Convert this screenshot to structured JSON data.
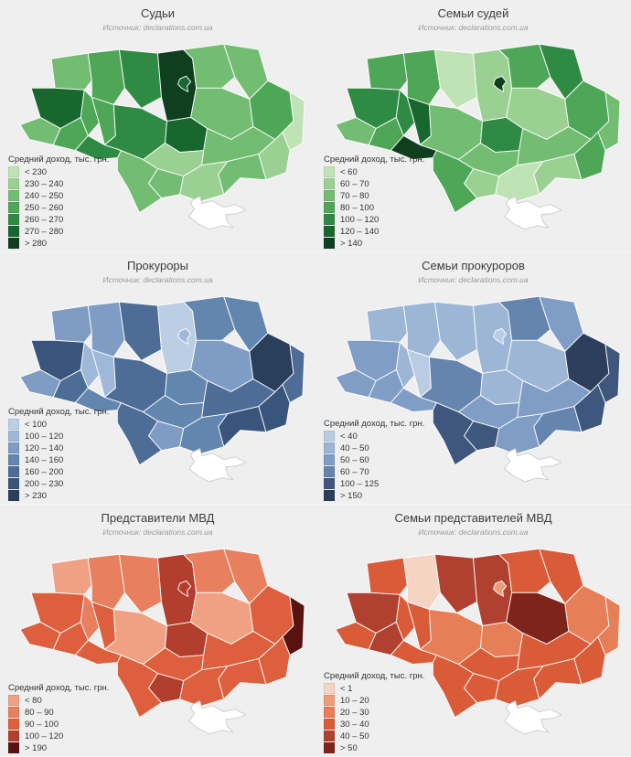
{
  "page": {
    "background": "#efefef"
  },
  "source_note": "Источник: declarations.com.ua",
  "legend_title": "Средний доход, тыс. грн.",
  "chart_data": [
    {
      "type": "heatmap",
      "subtype": "choropleth-map-ukraine",
      "title": "Судьи",
      "subtitle": "Источник: declarations.com.ua",
      "legend_title": "Средний доход, тыс. грн.",
      "legend_position": "bottom-left",
      "classes": [
        "< 230",
        "230 – 240",
        "240 – 250",
        "250 – 260",
        "260 – 270",
        "270 – 280",
        "> 280"
      ],
      "palette": [
        "#bfe3b4",
        "#9ad192",
        "#72bd72",
        "#4da757",
        "#2f8b44",
        "#17672f",
        "#103f20"
      ],
      "no_data_color": "#ffffff",
      "region_class": {
        "volyn": 2,
        "rivne": 3,
        "zhytomyr": 4,
        "kyiv_obl": 6,
        "kyiv_city": 5,
        "chernihiv": 2,
        "sumy": 2,
        "lviv": 5,
        "ternopil": 3,
        "khmelnytskyi": 3,
        "vinnytsia": 4,
        "cherkasy": 5,
        "poltava": 2,
        "kharkiv": 3,
        "luhansk": 0,
        "donetsk": 1,
        "zaporizhzhia": 2,
        "dnipropetrovsk": 2,
        "kirovohrad": 1,
        "mykolaiv": 2,
        "kherson": 1,
        "odesa": 2,
        "zakarpattia": 2,
        "ivano_frankivsk": 3,
        "chernivtsi": 4,
        "crimea": -1
      }
    },
    {
      "type": "heatmap",
      "subtype": "choropleth-map-ukraine",
      "title": "Семьи судей",
      "subtitle": "Источник: declarations.com.ua",
      "legend_title": "Средний доход, тыс. грн.",
      "legend_position": "bottom-left",
      "classes": [
        "< 60",
        "60 – 70",
        "70 – 80",
        "80 – 100",
        "100 – 120",
        "120 – 140",
        "> 140"
      ],
      "palette": [
        "#bfe3b4",
        "#9ad192",
        "#72bd72",
        "#4da757",
        "#2f8b44",
        "#17672f",
        "#103f20"
      ],
      "no_data_color": "#ffffff",
      "region_class": {
        "volyn": 3,
        "rivne": 3,
        "zhytomyr": 0,
        "kyiv_obl": 1,
        "kyiv_city": 6,
        "chernihiv": 3,
        "sumy": 4,
        "lviv": 4,
        "ternopil": 4,
        "khmelnytskyi": 5,
        "vinnytsia": 2,
        "cherkasy": 4,
        "poltava": 1,
        "kharkiv": 3,
        "luhansk": 2,
        "donetsk": 3,
        "zaporizhzhia": 1,
        "dnipropetrovsk": 2,
        "kirovohrad": 2,
        "mykolaiv": 1,
        "kherson": 0,
        "odesa": 3,
        "zakarpattia": 2,
        "ivano_frankivsk": 3,
        "chernivtsi": 6,
        "crimea": -1
      }
    },
    {
      "type": "heatmap",
      "subtype": "choropleth-map-ukraine",
      "title": "Прокуроры",
      "subtitle": "Источник: declarations.com.ua",
      "legend_title": "Средний доход, тыс. грн.",
      "legend_position": "bottom-left",
      "classes": [
        "< 100",
        "100 – 120",
        "120 – 140",
        "140 – 160",
        "160 – 200",
        "200 – 230",
        "> 230"
      ],
      "palette": [
        "#bccee4",
        "#9fb8d8",
        "#7e9cc4",
        "#6386af",
        "#4d6d96",
        "#3a557b",
        "#2a3f5c"
      ],
      "no_data_color": "#ffffff",
      "region_class": {
        "volyn": 2,
        "rivne": 2,
        "zhytomyr": 4,
        "kyiv_obl": 0,
        "kyiv_city": 1,
        "chernihiv": 3,
        "sumy": 3,
        "lviv": 5,
        "ternopil": 1,
        "khmelnytskyi": 1,
        "vinnytsia": 4,
        "cherkasy": 3,
        "poltava": 2,
        "kharkiv": 6,
        "luhansk": 4,
        "donetsk": 5,
        "zaporizhzhia": 5,
        "dnipropetrovsk": 4,
        "kirovohrad": 3,
        "mykolaiv": 2,
        "kherson": 3,
        "odesa": 4,
        "zakarpattia": 2,
        "ivano_frankivsk": 4,
        "chernivtsi": 3,
        "crimea": -1
      }
    },
    {
      "type": "heatmap",
      "subtype": "choropleth-map-ukraine",
      "title": "Семьи прокуроров",
      "subtitle": "Источник: declarations.com.ua",
      "legend_title": "Средний доход, тыс. грн.",
      "legend_position": "bottom-left",
      "classes": [
        "< 40",
        "40 – 50",
        "50 – 60",
        "60 – 70",
        "100 – 125",
        "> 150"
      ],
      "palette": [
        "#b9cce3",
        "#9db6d6",
        "#7f9dc5",
        "#6485ae",
        "#3f577d",
        "#2b3f5c"
      ],
      "no_data_color": "#ffffff",
      "region_class": {
        "volyn": 1,
        "rivne": 1,
        "zhytomyr": 1,
        "kyiv_obl": 1,
        "kyiv_city": 0,
        "chernihiv": 3,
        "sumy": 2,
        "lviv": 2,
        "ternopil": 1,
        "khmelnytskyi": 0,
        "vinnytsia": 3,
        "cherkasy": 1,
        "poltava": 1,
        "kharkiv": 5,
        "luhansk": 4,
        "donetsk": 4,
        "zaporizhzhia": 3,
        "dnipropetrovsk": 2,
        "kirovohrad": 2,
        "mykolaiv": 4,
        "kherson": 2,
        "odesa": 4,
        "zakarpattia": 2,
        "ivano_frankivsk": 2,
        "chernivtsi": 2,
        "crimea": -1
      }
    },
    {
      "type": "heatmap",
      "subtype": "choropleth-map-ukraine",
      "title": "Представители МВД",
      "subtitle": "Источник: declarations.com.ua",
      "legend_title": "Средний доход, тыс. грн.",
      "legend_position": "bottom-left",
      "classes": [
        "< 80",
        "80 – 90",
        "90 – 100",
        "100 – 120",
        "> 190"
      ],
      "palette": [
        "#f1a183",
        "#e87f5e",
        "#dd5f3d",
        "#b23f2d",
        "#581311"
      ],
      "no_data_color": "#ffffff",
      "region_class": {
        "volyn": 0,
        "rivne": 1,
        "zhytomyr": 1,
        "kyiv_obl": 3,
        "kyiv_city": 3,
        "chernihiv": 1,
        "sumy": 1,
        "lviv": 2,
        "ternopil": 1,
        "khmelnytskyi": 2,
        "vinnytsia": 0,
        "cherkasy": 3,
        "poltava": 0,
        "kharkiv": 2,
        "luhansk": 4,
        "donetsk": 2,
        "zaporizhzhia": 2,
        "dnipropetrovsk": 2,
        "kirovohrad": 2,
        "mykolaiv": 3,
        "kherson": 2,
        "odesa": 2,
        "zakarpattia": 2,
        "ivano_frankivsk": 2,
        "chernivtsi": 2,
        "crimea": -1
      }
    },
    {
      "type": "heatmap",
      "subtype": "choropleth-map-ukraine",
      "title": "Семьи представителей МВД",
      "subtitle": "Источник: declarations.com.ua",
      "legend_title": "Средний доход, тыс. грн.",
      "legend_position": "bottom-left",
      "classes": [
        "< 1",
        "10 – 20",
        "20 – 30",
        "30 – 40",
        "40 – 50",
        "> 50"
      ],
      "palette": [
        "#f6d4c4",
        "#ee9c78",
        "#e67e57",
        "#da5b38",
        "#b04030",
        "#7e241a"
      ],
      "no_data_color": "#ffffff",
      "region_class": {
        "volyn": 3,
        "rivne": 0,
        "zhytomyr": 4,
        "kyiv_obl": 4,
        "kyiv_city": 1,
        "chernihiv": 3,
        "sumy": 3,
        "lviv": 4,
        "ternopil": 3,
        "khmelnytskyi": 3,
        "vinnytsia": 2,
        "cherkasy": 2,
        "poltava": 5,
        "kharkiv": 2,
        "luhansk": 2,
        "donetsk": 3,
        "zaporizhzhia": 3,
        "dnipropetrovsk": 3,
        "kirovohrad": 3,
        "mykolaiv": 3,
        "kherson": 3,
        "odesa": 3,
        "zakarpattia": 3,
        "ivano_frankivsk": 4,
        "chernivtsi": 3,
        "crimea": -1
      }
    }
  ]
}
